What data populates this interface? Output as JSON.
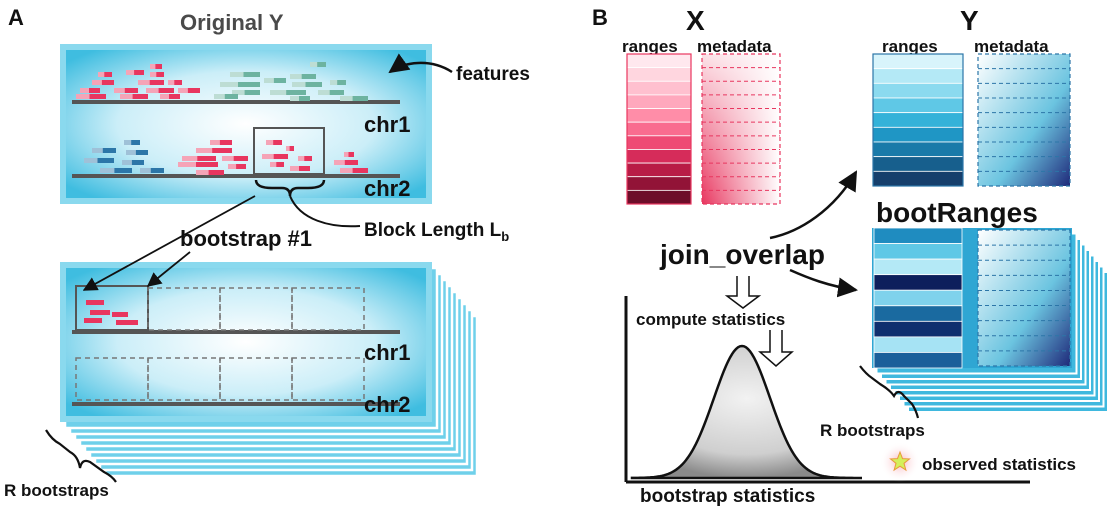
{
  "panel_a": {
    "letter": "A",
    "title": "Original Y",
    "features_label": "features",
    "chr1_label": "chr1",
    "chr2_label": "chr2",
    "block_length_label": "Block Length L",
    "block_length_subscript": "b",
    "bootstrap_label": "bootstrap #1",
    "r_bootstraps_label": "R bootstraps"
  },
  "panel_b": {
    "letter": "B",
    "x_title": "X",
    "y_title": "Y",
    "ranges_label": "ranges",
    "metadata_label": "metadata",
    "join_label": "join_overlap",
    "bootranges_label": "bootRanges",
    "compute_label": "compute statistics",
    "r_bootstraps_label": "R bootstraps",
    "observed_label": "observed statistics",
    "bootstrap_stats_label": "bootstrap statistics"
  },
  "colors": {
    "pink": "#e8365f",
    "teal": "#6db3a0",
    "blue": "#2c76a8",
    "cyan_bg": "#5fcbe6",
    "star": "#d4f05a"
  }
}
